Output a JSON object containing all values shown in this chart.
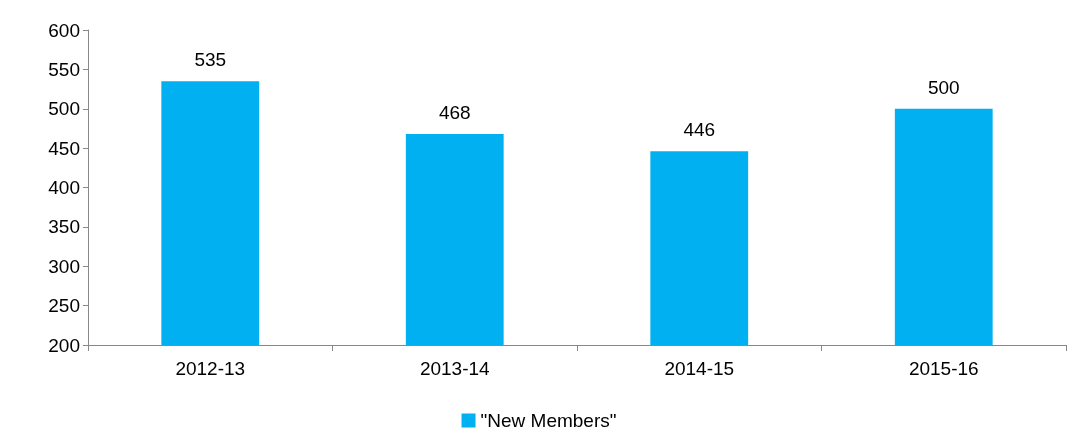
{
  "chart_data": {
    "type": "bar",
    "categories": [
      "2012-13",
      "2013-14",
      "2014-15",
      "2015-16"
    ],
    "series": [
      {
        "name": "\"New Members\"",
        "color": "#00b0f0",
        "values": [
          535,
          468,
          446,
          500
        ]
      }
    ],
    "ylim": [
      200,
      600
    ],
    "yticks": [
      200,
      250,
      300,
      350,
      400,
      450,
      500,
      550,
      600
    ],
    "data_labels": true,
    "grid": false,
    "legend": "bottom"
  }
}
